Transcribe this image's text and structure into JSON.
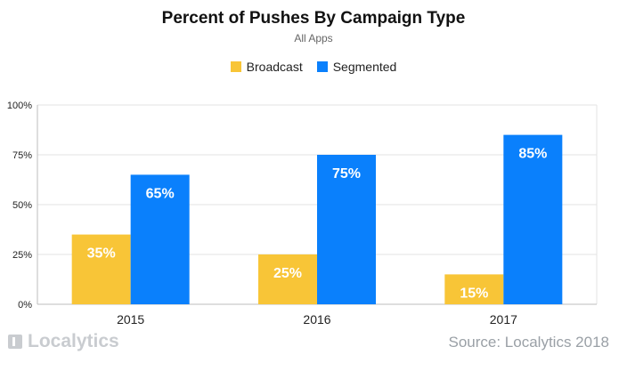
{
  "chart_data": {
    "type": "bar",
    "title": "Percent of Pushes By Campaign Type",
    "subtitle": "All Apps",
    "categories": [
      "2015",
      "2016",
      "2017"
    ],
    "series": [
      {
        "name": "Broadcast",
        "values": [
          35,
          25,
          15
        ],
        "color": "#f8c537",
        "labels": [
          "35%",
          "25%",
          "15%"
        ]
      },
      {
        "name": "Segmented",
        "values": [
          65,
          75,
          85
        ],
        "color": "#0a80fc",
        "labels": [
          "65%",
          "75%",
          "85%"
        ]
      }
    ],
    "ylim": [
      0,
      100
    ],
    "yticks": [
      0,
      25,
      50,
      75,
      100
    ],
    "ytick_labels": [
      "0%",
      "25%",
      "50%",
      "75%",
      "100%"
    ],
    "grid": true,
    "legend_position": "top-center"
  },
  "brand": {
    "name": "Localytics"
  },
  "source": "Source: Localytics 2018"
}
